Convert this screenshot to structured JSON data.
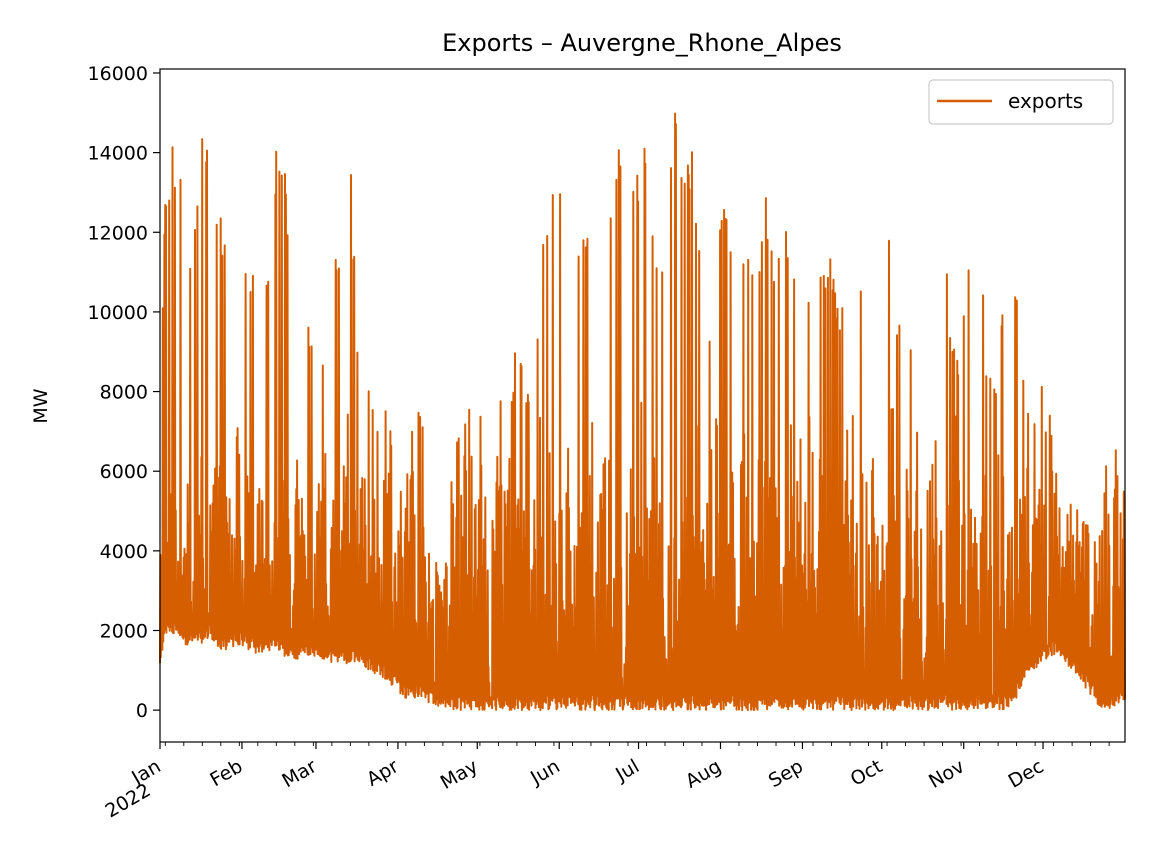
{
  "chart_data": {
    "type": "line",
    "title": "Exports – Auvergne_Rhone_Alpes",
    "xlabel": "",
    "ylabel": "MW",
    "ylim": [
      -800,
      16100
    ],
    "xlim": [
      "2022-01-01",
      "2023-01-01"
    ],
    "y_ticks": [
      "0",
      "2000",
      "4000",
      "6000",
      "8000",
      "10000",
      "12000",
      "14000",
      "16000"
    ],
    "x_ticks": [
      {
        "label": "Jan",
        "sublabel": "2022",
        "date": "2022-01-01"
      },
      {
        "label": "Feb",
        "date": "2022-02-01"
      },
      {
        "label": "Mar",
        "date": "2022-03-01"
      },
      {
        "label": "Apr",
        "date": "2022-04-01"
      },
      {
        "label": "May",
        "date": "2022-05-01"
      },
      {
        "label": "Jun",
        "date": "2022-06-01"
      },
      {
        "label": "Jul",
        "date": "2022-07-01"
      },
      {
        "label": "Aug",
        "date": "2022-08-01"
      },
      {
        "label": "Sep",
        "date": "2022-09-01"
      },
      {
        "label": "Oct",
        "date": "2022-10-01"
      },
      {
        "label": "Nov",
        "date": "2022-11-01"
      },
      {
        "label": "Dec",
        "date": "2022-12-01"
      }
    ],
    "grid": false,
    "legend_position": "top-right",
    "series": [
      {
        "name": "exports",
        "color": "#d55e00",
        "x": [
          "2022-01-01",
          "2022-01-03",
          "2022-01-06",
          "2022-01-10",
          "2022-01-13",
          "2022-01-17",
          "2022-01-20",
          "2022-01-24",
          "2022-01-27",
          "2022-01-31",
          "2022-02-03",
          "2022-02-07",
          "2022-02-10",
          "2022-02-14",
          "2022-02-17",
          "2022-02-21",
          "2022-02-24",
          "2022-02-28",
          "2022-03-03",
          "2022-03-07",
          "2022-03-10",
          "2022-03-14",
          "2022-03-17",
          "2022-03-21",
          "2022-03-24",
          "2022-03-28",
          "2022-03-31",
          "2022-04-04",
          "2022-04-07",
          "2022-04-11",
          "2022-04-14",
          "2022-04-18",
          "2022-04-21",
          "2022-04-25",
          "2022-04-28",
          "2022-05-02",
          "2022-05-05",
          "2022-05-09",
          "2022-05-12",
          "2022-05-16",
          "2022-05-19",
          "2022-05-23",
          "2022-05-26",
          "2022-05-30",
          "2022-06-02",
          "2022-06-06",
          "2022-06-09",
          "2022-06-13",
          "2022-06-16",
          "2022-06-20",
          "2022-06-23",
          "2022-06-27",
          "2022-06-30",
          "2022-07-04",
          "2022-07-07",
          "2022-07-11",
          "2022-07-14",
          "2022-07-18",
          "2022-07-21",
          "2022-07-25",
          "2022-07-28",
          "2022-08-01",
          "2022-08-04",
          "2022-08-08",
          "2022-08-11",
          "2022-08-15",
          "2022-08-18",
          "2022-08-22",
          "2022-08-25",
          "2022-08-29",
          "2022-09-01",
          "2022-09-05",
          "2022-09-08",
          "2022-09-12",
          "2022-09-15",
          "2022-09-19",
          "2022-09-22",
          "2022-09-26",
          "2022-09-29",
          "2022-10-03",
          "2022-10-06",
          "2022-10-10",
          "2022-10-13",
          "2022-10-17",
          "2022-10-20",
          "2022-10-24",
          "2022-10-27",
          "2022-10-31",
          "2022-11-03",
          "2022-11-07",
          "2022-11-10",
          "2022-11-14",
          "2022-11-17",
          "2022-11-21",
          "2022-11-24",
          "2022-11-28",
          "2022-12-01",
          "2022-12-05",
          "2022-12-08",
          "2022-12-12",
          "2022-12-15",
          "2022-12-19",
          "2022-12-22",
          "2022-12-26",
          "2022-12-31"
        ],
        "low": [
          1000,
          1800,
          1900,
          1600,
          1500,
          1700,
          1800,
          1500,
          1500,
          1600,
          1500,
          1400,
          1400,
          1500,
          1300,
          1200,
          1400,
          1300,
          1300,
          1200,
          1200,
          1100,
          1200,
          1000,
          900,
          700,
          500,
          300,
          300,
          300,
          100,
          0,
          0,
          0,
          0,
          0,
          0,
          0,
          0,
          0,
          0,
          0,
          0,
          0,
          0,
          0,
          0,
          0,
          0,
          0,
          0,
          0,
          0,
          0,
          0,
          0,
          0,
          0,
          0,
          0,
          0,
          0,
          0,
          0,
          0,
          0,
          0,
          0,
          0,
          0,
          0,
          0,
          0,
          0,
          0,
          0,
          0,
          0,
          0,
          0,
          0,
          0,
          0,
          0,
          0,
          0,
          0,
          0,
          0,
          0,
          0,
          0,
          0,
          300,
          800,
          1000,
          1200,
          1400,
          1300,
          1000,
          700,
          400,
          100,
          0,
          200
        ],
        "high": [
          7000,
          13100,
          14300,
          12900,
          11500,
          14900,
          13700,
          12400,
          11700,
          12700,
          10700,
          11700,
          10500,
          14100,
          14100,
          9500,
          10800,
          8900,
          8700,
          12000,
          11100,
          14000,
          8800,
          8400,
          7000,
          7700,
          6300,
          5500,
          7900,
          7600,
          4500,
          2800,
          5600,
          7700,
          7900,
          7300,
          8600,
          8900,
          5100,
          10300,
          7600,
          8900,
          12200,
          13700,
          13100,
          13800,
          11400,
          12900,
          10900,
          12200,
          14800,
          14500,
          13300,
          14600,
          11900,
          11400,
          15300,
          14000,
          14200,
          11600,
          9800,
          13100,
          12600,
          11800,
          12300,
          11200,
          13200,
          11000,
          12400,
          11000,
          11600,
          10700,
          11000,
          11500,
          9700,
          11300,
          10800,
          10900,
          9500,
          13300,
          10100,
          9600,
          9400,
          13200,
          9100,
          13700,
          9200,
          9000,
          11900,
          12300,
          8500,
          8300,
          11600,
          11100,
          8200,
          7400,
          8300,
          6900,
          4800,
          5500,
          5000,
          4700,
          4300,
          6900,
          6900
        ],
        "typical_range": [
          1500,
          6000
        ]
      }
    ]
  }
}
